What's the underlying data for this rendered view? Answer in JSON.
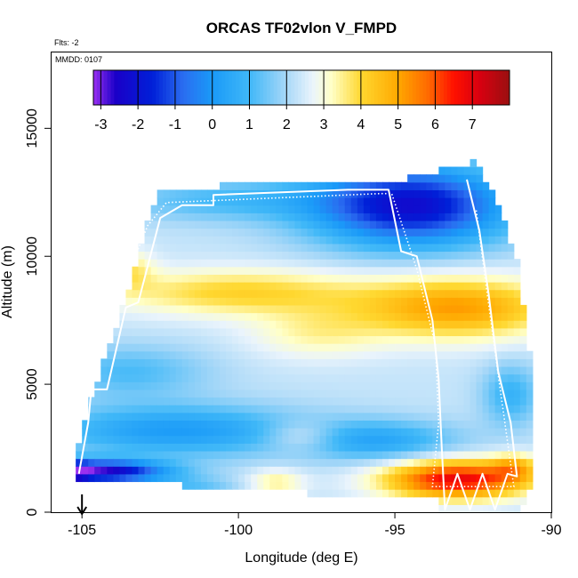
{
  "chart_data": {
    "type": "heatmap",
    "title": "ORCAS TF02vlon V_FMPD",
    "subtitle_flts": "Flts: -2",
    "subtitle_mmdd": "MMDD: 0107",
    "xlabel": "Longitude (deg E)",
    "ylabel": "Altitude (m)",
    "xlim": [
      -106,
      -90
    ],
    "ylim": [
      0,
      18000
    ],
    "x_ticks": [
      -105,
      -100,
      -95,
      -90
    ],
    "x_tick_labels": [
      "-105",
      "-100",
      "-95",
      "-90"
    ],
    "y_ticks": [
      0,
      5000,
      10000,
      15000
    ],
    "y_tick_labels": [
      "0",
      "5000",
      "10000",
      "15000"
    ],
    "colorbar": {
      "min": -3.2,
      "max": 8.0,
      "ticks": [
        -3,
        -2,
        -1,
        0,
        1,
        2,
        3,
        4,
        5,
        6,
        7
      ],
      "tick_labels": [
        "-3",
        "-2",
        "-1",
        "0",
        "1",
        "2",
        "3",
        "4",
        "5",
        "6",
        "7"
      ],
      "stops": [
        {
          "v": -3.2,
          "c": "#9a30f0"
        },
        {
          "v": -2.6,
          "c": "#1a00c8"
        },
        {
          "v": -1.6,
          "c": "#0020d8"
        },
        {
          "v": -0.8,
          "c": "#2a6cf0"
        },
        {
          "v": 0.0,
          "c": "#1a9af8"
        },
        {
          "v": 1.0,
          "c": "#40b8f8"
        },
        {
          "v": 2.0,
          "c": "#a8d8f8"
        },
        {
          "v": 2.7,
          "c": "#eaf4fc"
        },
        {
          "v": 3.2,
          "c": "#ffffc8"
        },
        {
          "v": 4.0,
          "c": "#ffd830"
        },
        {
          "v": 5.0,
          "c": "#ffa800"
        },
        {
          "v": 5.8,
          "c": "#ff6a00"
        },
        {
          "v": 6.5,
          "c": "#ff1000"
        },
        {
          "v": 7.2,
          "c": "#d80010"
        },
        {
          "v": 8.0,
          "c": "#9a1010"
        }
      ]
    },
    "field_features": [
      {
        "name": "upper blue maximum",
        "lon": -94.5,
        "alt": 12000,
        "value": -2.3
      },
      {
        "name": "mid-level warm band",
        "lon": -92,
        "alt": 8000,
        "value": 5.6
      },
      {
        "name": "lower cool band",
        "lon": -102,
        "alt": 3200,
        "value": 0.2
      },
      {
        "name": "near-surface maximum",
        "lon": -93,
        "alt": 1300,
        "value": 6.9
      },
      {
        "name": "near-surface minimum",
        "lon": -104,
        "alt": 1600,
        "value": -2.4
      }
    ],
    "domain_outline": [
      [
        -105.2,
        1500
      ],
      [
        -105.1,
        2800
      ],
      [
        -104.6,
        4800
      ],
      [
        -103.7,
        8000
      ],
      [
        -103.3,
        9500
      ],
      [
        -103.0,
        11000
      ],
      [
        -102.5,
        12700
      ],
      [
        -95.0,
        12900
      ],
      [
        -92.5,
        13700
      ],
      [
        -91.8,
        12500
      ],
      [
        -91.0,
        9500
      ],
      [
        -90.9,
        8000
      ],
      [
        -90.6,
        5500
      ],
      [
        -90.5,
        4000
      ],
      [
        -90.6,
        1200
      ],
      [
        -91.0,
        100
      ],
      [
        -93.5,
        100
      ],
      [
        -93.7,
        500
      ],
      [
        -97.0,
        500
      ],
      [
        -98.0,
        800
      ],
      [
        -101.2,
        1000
      ],
      [
        -103.3,
        1200
      ],
      [
        -105.2,
        1200
      ]
    ],
    "flight_track": [
      [
        -105.1,
        1500
      ],
      [
        -104.8,
        3500
      ],
      [
        -104.7,
        4800
      ],
      [
        -104.2,
        4800
      ],
      [
        -103.6,
        8000
      ],
      [
        -103.2,
        8200
      ],
      [
        -102.5,
        11500
      ],
      [
        -101.8,
        12000
      ],
      [
        -100.8,
        12000
      ],
      [
        -100.8,
        12400
      ],
      [
        -96.5,
        12600
      ],
      [
        -95.2,
        12600
      ],
      [
        -94.8,
        10200
      ],
      [
        -94.3,
        10000
      ],
      [
        -93.8,
        7500
      ],
      [
        -93.6,
        5200
      ],
      [
        -93.5,
        2500
      ],
      [
        -93.4,
        100
      ],
      [
        -93.0,
        1500
      ],
      [
        -92.6,
        100
      ],
      [
        -92.2,
        1500
      ],
      [
        -91.8,
        100
      ],
      [
        -91.4,
        1500
      ],
      [
        -91.1,
        1400
      ],
      [
        -91.3,
        3500
      ],
      [
        -91.7,
        5500
      ],
      [
        -92.0,
        8500
      ],
      [
        -92.3,
        11000
      ],
      [
        -92.7,
        13000
      ]
    ],
    "flight_track_dotted": [
      [
        -104.3,
        7900
      ],
      [
        -103.8,
        8500
      ],
      [
        -102.9,
        11200
      ],
      [
        -102.3,
        12100
      ],
      [
        -95.5,
        12450
      ],
      [
        -95.1,
        12450
      ],
      [
        -94.3,
        9500
      ],
      [
        -93.7,
        6500
      ],
      [
        -93.6,
        3500
      ],
      [
        -93.8,
        1000
      ],
      [
        -91.2,
        1000
      ],
      [
        -91.6,
        4500
      ],
      [
        -92.1,
        9000
      ],
      [
        -92.4,
        11800
      ]
    ],
    "arrow_marker": {
      "lon": -105,
      "direction": "down"
    }
  }
}
